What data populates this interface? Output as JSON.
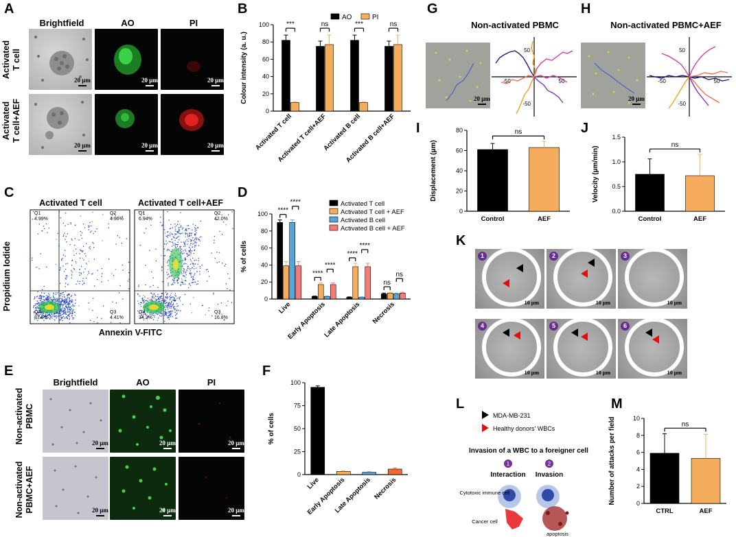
{
  "panel_letters": [
    "A",
    "B",
    "C",
    "D",
    "E",
    "F",
    "G",
    "H",
    "I",
    "J",
    "K",
    "L",
    "M"
  ],
  "panelA": {
    "columns": [
      "Brightfield",
      "AO",
      "PI"
    ],
    "rows": [
      "Activated\nT cell",
      "Activated\nT cell+AEF"
    ],
    "scale": "20 μm"
  },
  "panelE": {
    "columns": [
      "Brightfield",
      "AO",
      "PI"
    ],
    "rows": [
      "Non-activated\nPBMC",
      "Non-activated\nPBMC+AEF"
    ],
    "scale": "20 μm"
  },
  "panelC": {
    "titles": [
      "Activated T cell",
      "Activated T cell+AEF"
    ],
    "ylabel": "Propidium Iodide",
    "xlabel": "Annexin V-FITC",
    "quadrants": [
      {
        "q1": "Q1",
        "q1v": "4.99%",
        "q2": "Q2",
        "q2v": "4.96%",
        "q3": "Q3",
        "q3v": "4.41%",
        "q4": "Q4",
        "q4v": "87.6%"
      },
      {
        "q1": "Q1",
        "q1v": "6.94%",
        "q2": "Q2",
        "q2v": "42.0%",
        "q3": "Q3",
        "q3v": "16.8%",
        "q4": "Q4",
        "q4v": "34.2%"
      }
    ]
  },
  "panelG": {
    "title": "Non-activated PBMC",
    "scale": "20 μm"
  },
  "panelH": {
    "title": "Non-activated PBMC+AEF",
    "scale": "20 μm"
  },
  "panelK": {
    "frames": [
      "1",
      "2",
      "3",
      "4",
      "5",
      "6"
    ],
    "scale": "10 μm"
  },
  "panelL": {
    "legend": [
      "MDA-MB-231",
      "Healthy donors' WBCs"
    ],
    "title": "Invasion of a WBC to a foreigner cell",
    "steps": [
      {
        "num": "1",
        "label": "Interaction"
      },
      {
        "num": "2",
        "label": "Invasion"
      }
    ],
    "labels": {
      "immune": "Cytotoxic immune cell",
      "cancer": "Cancer cell",
      "apoptosis": "apoptosis"
    }
  },
  "chart_data": [
    {
      "id": "B",
      "type": "bar",
      "categories": [
        "Activated T cell",
        "Activated T cell+AEF",
        "Activated B cell",
        "Activated B cell+AEF"
      ],
      "series": [
        {
          "name": "AO",
          "values": [
            82,
            75,
            82,
            75
          ],
          "errors": [
            6,
            6,
            6,
            6
          ],
          "color": "#000000"
        },
        {
          "name": "PI",
          "values": [
            10,
            77,
            10,
            77
          ],
          "errors": [
            1,
            11,
            1,
            11
          ],
          "color": "#f5ad5d"
        }
      ],
      "ylabel": "Colour intensity (a. u.)",
      "ylim": [
        0,
        100
      ],
      "yticks": [
        0,
        20,
        40,
        60,
        80,
        100
      ],
      "significance": [
        "***",
        "ns",
        "***",
        "ns"
      ]
    },
    {
      "id": "D",
      "type": "bar",
      "categories": [
        "Live",
        "Early Apoptosis",
        "Late Apoptosis",
        "Necrosis"
      ],
      "series": [
        {
          "name": "Activated T cell",
          "values": [
            90,
            3,
            2,
            6
          ],
          "errors": [
            3,
            0.5,
            0.5,
            1
          ],
          "color": "#000000"
        },
        {
          "name": "Activated T cell + AEF",
          "values": [
            39,
            17,
            38,
            7
          ],
          "errors": [
            5,
            2,
            4,
            1
          ],
          "color": "#f5ad5d"
        },
        {
          "name": "Activated B cell",
          "values": [
            90,
            3,
            2,
            6
          ],
          "errors": [
            3,
            0.5,
            0.5,
            1
          ],
          "color": "#5aa4d8"
        },
        {
          "name": "Activated B cell + AEF",
          "values": [
            39,
            17,
            38,
            7
          ],
          "errors": [
            5,
            2,
            4,
            1
          ],
          "color": "#f57b7b"
        }
      ],
      "ylabel": "% of cells",
      "ylim": [
        0,
        100
      ],
      "yticks": [
        0,
        20,
        40,
        60,
        80,
        100
      ],
      "significance": [
        "****",
        "****",
        "****",
        "****",
        "****",
        "****",
        "ns",
        "ns"
      ]
    },
    {
      "id": "F",
      "type": "bar",
      "categories": [
        "Live",
        "Early Apoptosis",
        "Late Apoptosis",
        "Necrosis"
      ],
      "values": [
        95,
        3.5,
        2.5,
        6
      ],
      "errors": [
        1.5,
        0.8,
        0.6,
        1.2
      ],
      "colors": [
        "#000000",
        "#f5ad5d",
        "#5aa4d8",
        "#ee6a2f"
      ],
      "ylabel": "% of cells",
      "ylim": [
        0,
        100
      ],
      "yticks": [
        0,
        25,
        50,
        75,
        100
      ]
    },
    {
      "id": "I",
      "type": "bar",
      "categories": [
        "Control",
        "AEF"
      ],
      "values": [
        61,
        63
      ],
      "errors": [
        6,
        6
      ],
      "colors": [
        "#000000",
        "#f5ad5d"
      ],
      "ylabel": "Displacement (μm)",
      "ylim": [
        0,
        80
      ],
      "yticks": [
        0,
        20,
        40,
        60,
        80
      ],
      "significance": "ns"
    },
    {
      "id": "J",
      "type": "bar",
      "categories": [
        "Control",
        "AEF"
      ],
      "values": [
        0.75,
        0.72
      ],
      "errors": [
        0.31,
        0.43
      ],
      "colors": [
        "#000000",
        "#f5ad5d"
      ],
      "ylabel": "Velocity (μm/min)",
      "ylim": [
        0,
        1.5
      ],
      "yticks": [
        "0.0",
        "0.5",
        "1.0",
        "1.5"
      ],
      "significance": "ns"
    },
    {
      "id": "M",
      "type": "bar",
      "categories": [
        "CTRL",
        "AEF"
      ],
      "values": [
        5.9,
        5.3
      ],
      "errors": [
        2.3,
        2.8
      ],
      "colors": [
        "#000000",
        "#f5ad5d"
      ],
      "ylabel": "Number of attacks per field",
      "ylim": [
        0,
        10
      ],
      "yticks": [
        0,
        2,
        4,
        6,
        8,
        10
      ],
      "significance": "ns"
    }
  ],
  "trajectory_axes": {
    "ticks": [
      "50",
      "-50",
      "-50",
      "50"
    ]
  }
}
